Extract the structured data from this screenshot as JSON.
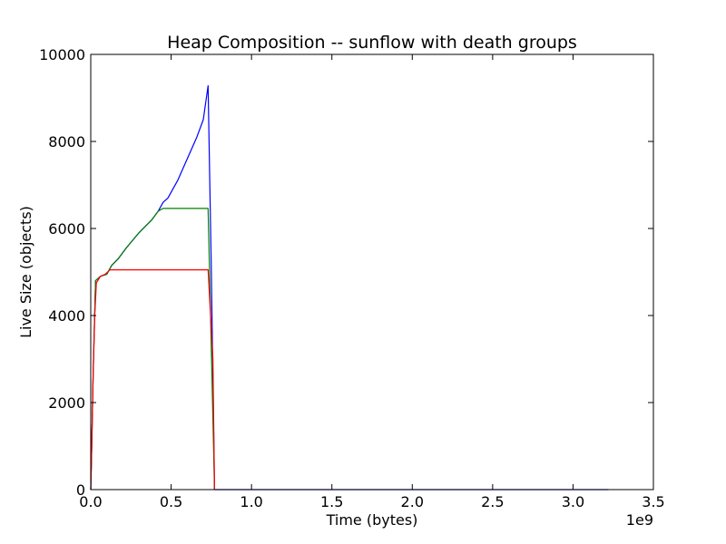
{
  "chart_data": {
    "type": "line",
    "title": "Heap Composition -- sunflow with death groups",
    "xlabel": "Time (bytes)",
    "ylabel": "Live Size (objects)",
    "x_offset_label": "1e9",
    "xlim": [
      0,
      3.5
    ],
    "ylim": [
      0,
      10000
    ],
    "x_ticks": [
      "0.0",
      "0.5",
      "1.0",
      "1.5",
      "2.0",
      "2.5",
      "3.0",
      "3.5"
    ],
    "y_ticks": [
      "0",
      "2000",
      "4000",
      "6000",
      "8000",
      "10000"
    ],
    "grid": false,
    "legend": "none",
    "series": [
      {
        "color": "#0000ff",
        "points": [
          [
            0,
            0
          ],
          [
            0.005,
            800
          ],
          [
            0.015,
            2700
          ],
          [
            0.03,
            4800
          ],
          [
            0.06,
            4900
          ],
          [
            0.1,
            4950
          ],
          [
            0.13,
            5150
          ],
          [
            0.17,
            5300
          ],
          [
            0.22,
            5550
          ],
          [
            0.3,
            5900
          ],
          [
            0.38,
            6200
          ],
          [
            0.42,
            6400
          ],
          [
            0.45,
            6600
          ],
          [
            0.48,
            6700
          ],
          [
            0.54,
            7100
          ],
          [
            0.6,
            7600
          ],
          [
            0.66,
            8100
          ],
          [
            0.7,
            8500
          ],
          [
            0.73,
            9280
          ],
          [
            0.75,
            5000
          ],
          [
            0.77,
            0
          ],
          [
            3.22,
            0
          ]
        ]
      },
      {
        "color": "#008000",
        "points": [
          [
            0,
            0
          ],
          [
            0.005,
            800
          ],
          [
            0.015,
            2700
          ],
          [
            0.03,
            4800
          ],
          [
            0.06,
            4900
          ],
          [
            0.1,
            4950
          ],
          [
            0.13,
            5150
          ],
          [
            0.17,
            5300
          ],
          [
            0.22,
            5550
          ],
          [
            0.3,
            5900
          ],
          [
            0.38,
            6200
          ],
          [
            0.42,
            6400
          ],
          [
            0.45,
            6460
          ],
          [
            0.5,
            6460
          ],
          [
            0.6,
            6460
          ],
          [
            0.73,
            6460
          ],
          [
            0.745,
            4000
          ],
          [
            0.77,
            0
          ]
        ]
      },
      {
        "color": "#ff0000",
        "points": [
          [
            0,
            0
          ],
          [
            0.005,
            800
          ],
          [
            0.015,
            2700
          ],
          [
            0.025,
            4000
          ],
          [
            0.035,
            4750
          ],
          [
            0.06,
            4900
          ],
          [
            0.09,
            4950
          ],
          [
            0.12,
            5050
          ],
          [
            0.3,
            5050
          ],
          [
            0.5,
            5050
          ],
          [
            0.73,
            5050
          ],
          [
            0.76,
            3000
          ],
          [
            0.77,
            0
          ]
        ]
      }
    ]
  }
}
